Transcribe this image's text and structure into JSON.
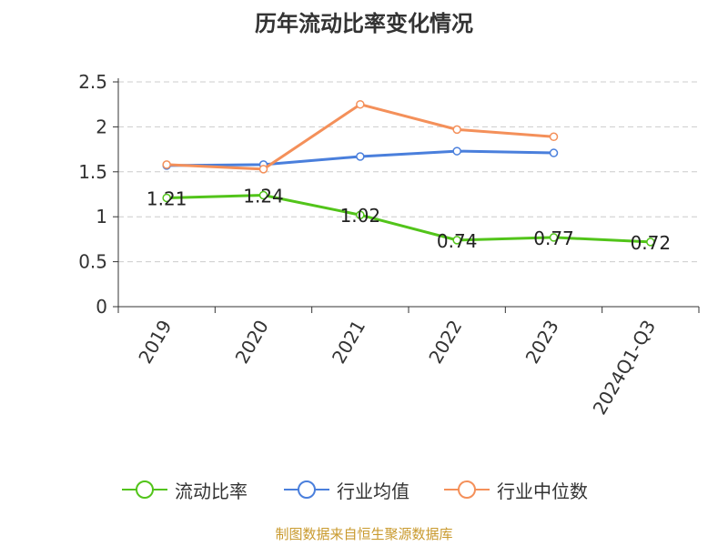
{
  "title": "历年流动比率变化情况",
  "source": "制图数据来自恒生聚源数据库",
  "chart_data": {
    "type": "line",
    "title": "历年流动比率变化情况",
    "categories": [
      "2019",
      "2020",
      "2021",
      "2022",
      "2023",
      "2024Q1-Q3"
    ],
    "y_ticks": [
      "0",
      "0.5",
      "1",
      "1.5",
      "2",
      "2.5"
    ],
    "ylim": [
      0,
      2.5
    ],
    "grid": true,
    "legend_position": "bottom",
    "series": [
      {
        "name": "流动比率",
        "color": "#52c41a",
        "show_labels": true,
        "values": [
          1.21,
          1.24,
          1.02,
          0.74,
          0.77,
          0.72
        ],
        "labels": [
          "1.21",
          "1.24",
          "1.02",
          "0.74",
          "0.77",
          "0.72"
        ]
      },
      {
        "name": "行业均值",
        "color": "#4a7fdc",
        "show_labels": false,
        "values": [
          1.57,
          1.58,
          1.67,
          1.73,
          1.71,
          null
        ]
      },
      {
        "name": "行业中位数",
        "color": "#f4905a",
        "show_labels": false,
        "values": [
          1.58,
          1.53,
          2.25,
          1.97,
          1.89,
          null
        ]
      }
    ]
  }
}
